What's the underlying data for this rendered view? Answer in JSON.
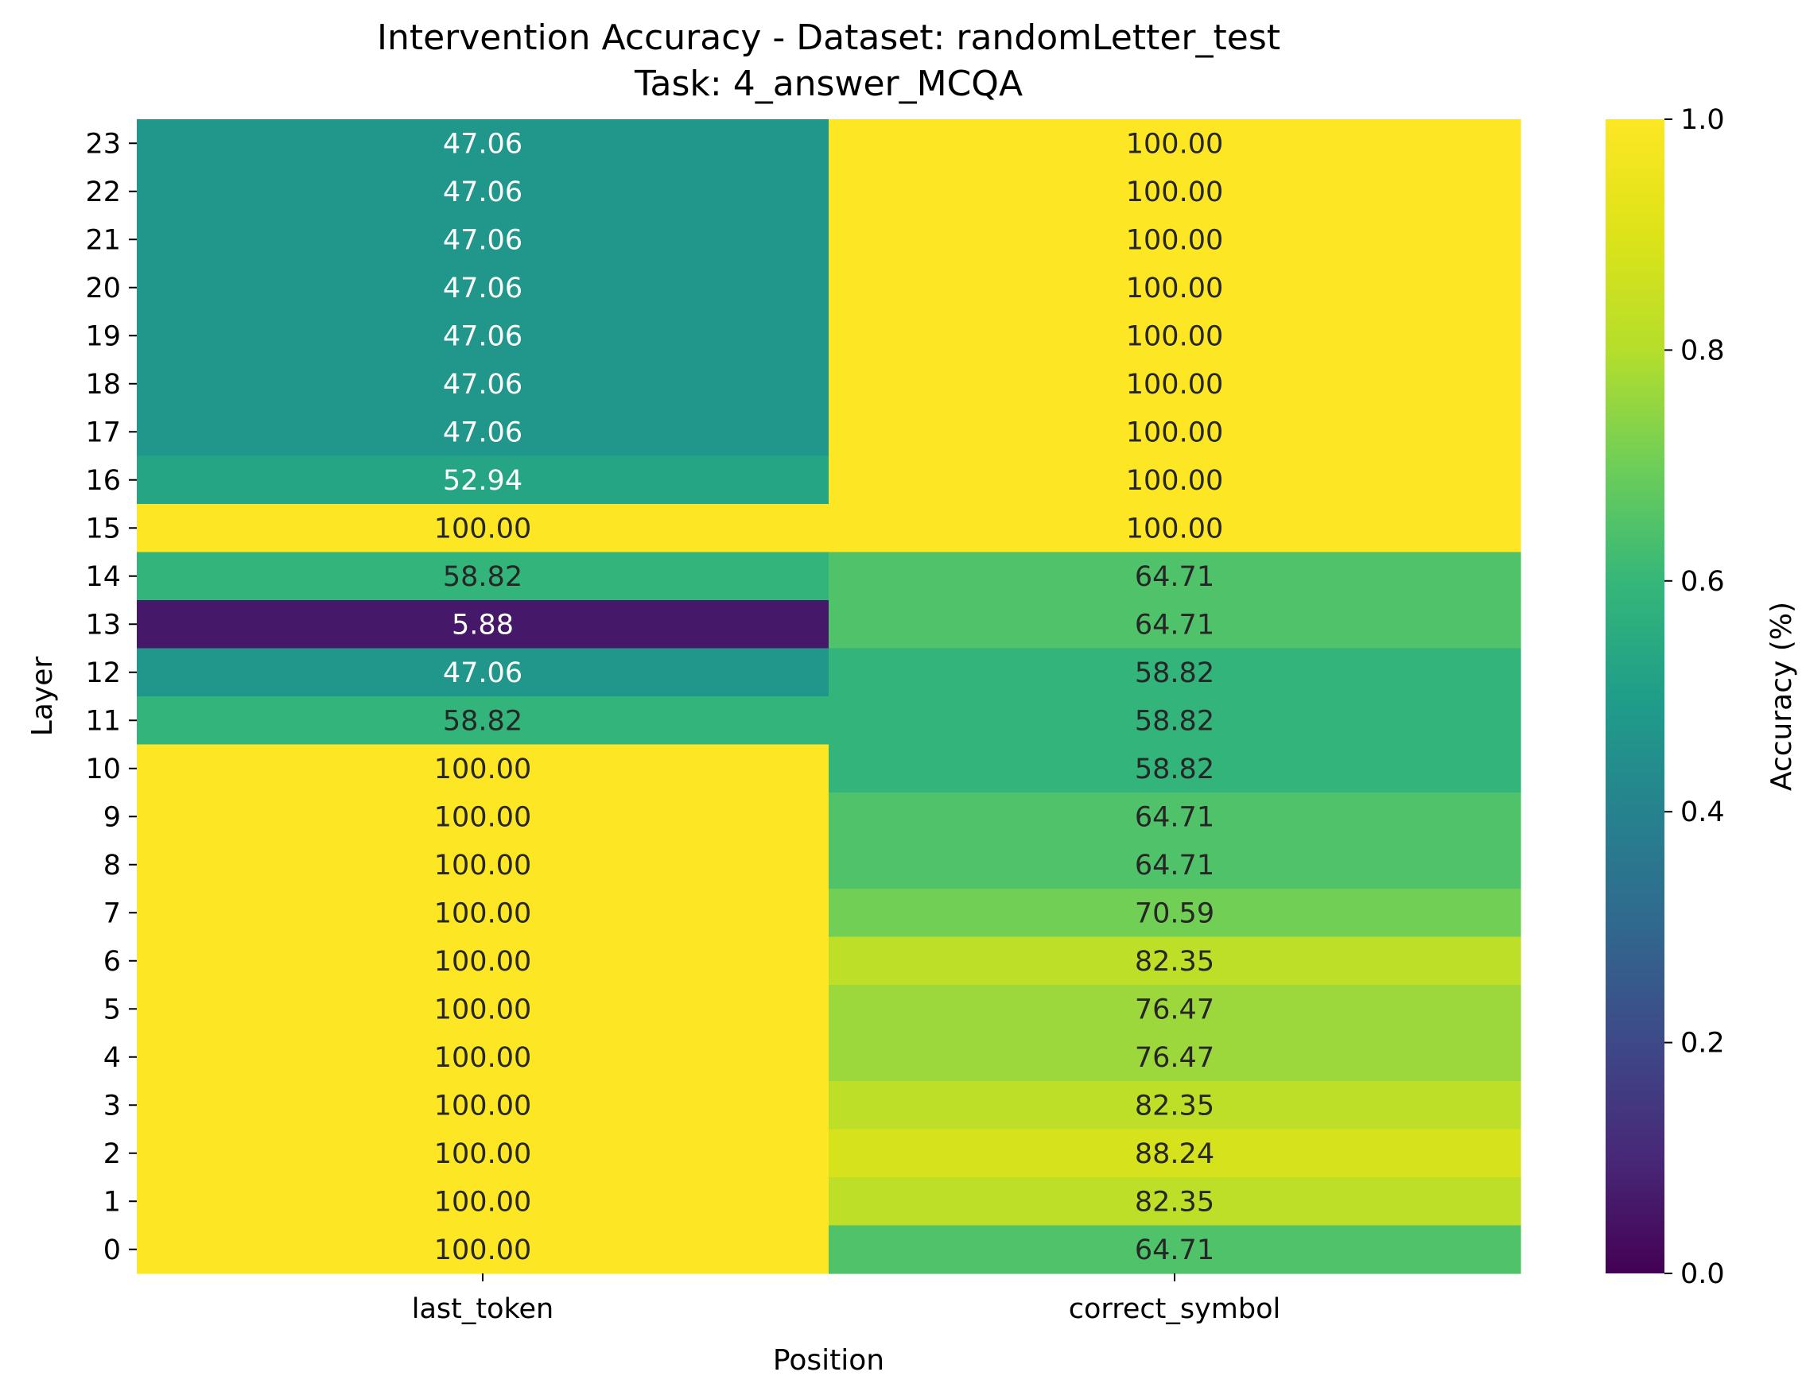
{
  "chart_data": {
    "type": "heatmap",
    "title": "Intervention Accuracy - Dataset: randomLetter_test",
    "subtitle": "Task: 4_answer_MCQA",
    "xlabel": "Position",
    "ylabel": "Layer",
    "x_categories": [
      "last_token",
      "correct_symbol"
    ],
    "y_categories": [
      "23",
      "22",
      "21",
      "20",
      "19",
      "18",
      "17",
      "16",
      "15",
      "14",
      "13",
      "12",
      "11",
      "10",
      "9",
      "8",
      "7",
      "6",
      "5",
      "4",
      "3",
      "2",
      "1",
      "0"
    ],
    "values": [
      [
        0.4706,
        1.0
      ],
      [
        0.4706,
        1.0
      ],
      [
        0.4706,
        1.0
      ],
      [
        0.4706,
        1.0
      ],
      [
        0.4706,
        1.0
      ],
      [
        0.4706,
        1.0
      ],
      [
        0.4706,
        1.0
      ],
      [
        0.5294,
        1.0
      ],
      [
        1.0,
        1.0
      ],
      [
        0.5882,
        0.6471
      ],
      [
        0.0588,
        0.6471
      ],
      [
        0.4706,
        0.5882
      ],
      [
        0.5882,
        0.5882
      ],
      [
        1.0,
        0.5882
      ],
      [
        1.0,
        0.6471
      ],
      [
        1.0,
        0.6471
      ],
      [
        1.0,
        0.7059
      ],
      [
        1.0,
        0.8235
      ],
      [
        1.0,
        0.7647
      ],
      [
        1.0,
        0.7647
      ],
      [
        1.0,
        0.8235
      ],
      [
        1.0,
        0.8824
      ],
      [
        1.0,
        0.8235
      ],
      [
        1.0,
        0.6471
      ]
    ],
    "annotations": [
      [
        "47.06",
        "100.00"
      ],
      [
        "47.06",
        "100.00"
      ],
      [
        "47.06",
        "100.00"
      ],
      [
        "47.06",
        "100.00"
      ],
      [
        "47.06",
        "100.00"
      ],
      [
        "47.06",
        "100.00"
      ],
      [
        "47.06",
        "100.00"
      ],
      [
        "52.94",
        "100.00"
      ],
      [
        "100.00",
        "100.00"
      ],
      [
        "58.82",
        "64.71"
      ],
      [
        "5.88",
        "64.71"
      ],
      [
        "47.06",
        "58.82"
      ],
      [
        "58.82",
        "58.82"
      ],
      [
        "100.00",
        "58.82"
      ],
      [
        "100.00",
        "64.71"
      ],
      [
        "100.00",
        "64.71"
      ],
      [
        "100.00",
        "70.59"
      ],
      [
        "100.00",
        "82.35"
      ],
      [
        "100.00",
        "76.47"
      ],
      [
        "100.00",
        "76.47"
      ],
      [
        "100.00",
        "82.35"
      ],
      [
        "100.00",
        "88.24"
      ],
      [
        "100.00",
        "82.35"
      ],
      [
        "100.00",
        "64.71"
      ]
    ],
    "colorbar": {
      "label": "Accuracy (%)",
      "range": [
        0.0,
        1.0
      ],
      "ticks": [
        "0.0",
        "0.2",
        "0.4",
        "0.6",
        "0.8",
        "1.0"
      ],
      "colormap": "viridis"
    }
  }
}
